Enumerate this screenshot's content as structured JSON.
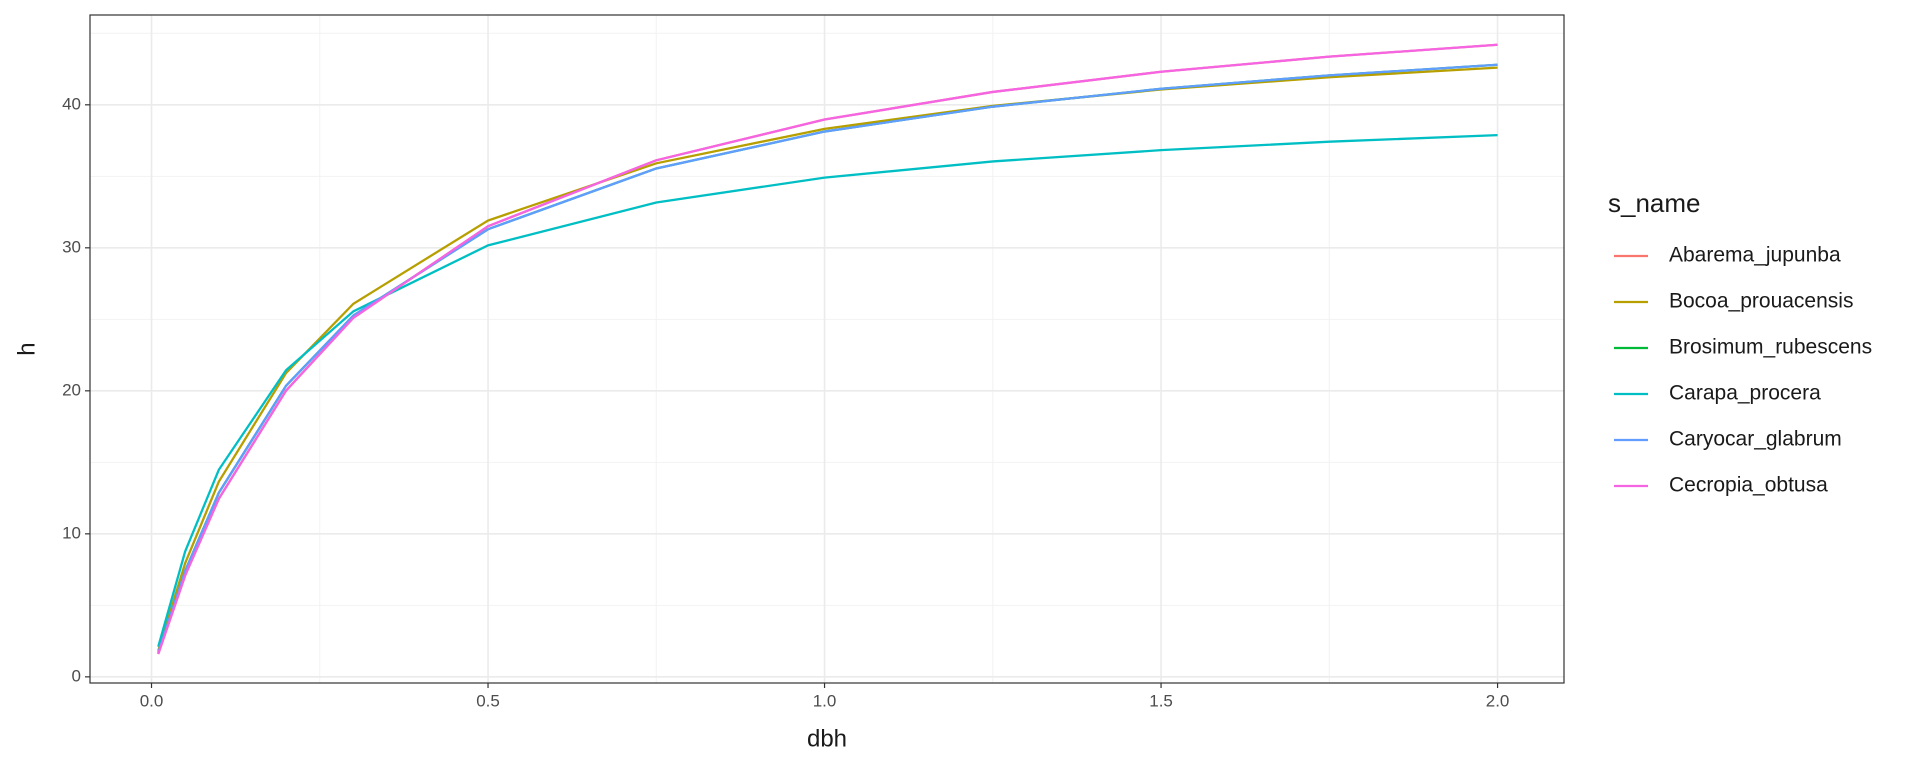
{
  "chart_data": {
    "type": "line",
    "x_label": "dbh",
    "y_label": "h",
    "legend_title": "s_name",
    "x": [
      0.01,
      0.05,
      0.1,
      0.2,
      0.3,
      0.5,
      0.75,
      1.0,
      1.25,
      1.5,
      1.75,
      2.0
    ],
    "series": [
      {
        "name": "Abarema_jupunba",
        "color": "#f8766d",
        "values": [
          1.6,
          7.09,
          12.45,
          20.02,
          25.11,
          31.51,
          36.12,
          38.97,
          40.9,
          42.31,
          43.37,
          44.2
        ]
      },
      {
        "name": "Bocoa_prouacensis",
        "color": "#b79f00",
        "values": [
          1.83,
          7.95,
          13.65,
          21.25,
          26.09,
          31.91,
          35.91,
          38.32,
          39.92,
          41.07,
          41.93,
          42.6
        ]
      },
      {
        "name": "Brosimum_rubescens",
        "color": "#00ba38",
        "values": [
          1.69,
          7.41,
          12.87,
          20.36,
          25.27,
          31.3,
          35.55,
          38.13,
          39.87,
          41.12,
          42.06,
          42.8
        ]
      },
      {
        "name": "Carapa_procera",
        "color": "#00bfc4",
        "values": [
          2.11,
          8.77,
          14.48,
          21.45,
          25.56,
          30.17,
          33.17,
          34.91,
          36.04,
          36.83,
          37.42,
          37.88
        ]
      },
      {
        "name": "Caryocar_glabrum",
        "color": "#619cff",
        "values": [
          1.69,
          7.41,
          12.87,
          20.36,
          25.27,
          31.3,
          35.55,
          38.13,
          39.87,
          41.12,
          42.06,
          42.8
        ]
      },
      {
        "name": "Cecropia_obtusa",
        "color": "#f564e3",
        "values": [
          1.6,
          7.09,
          12.45,
          20.02,
          25.11,
          31.51,
          36.12,
          38.97,
          40.9,
          42.31,
          43.37,
          44.2
        ]
      }
    ],
    "xlim": [
      -0.0914,
      2.0987
    ],
    "ylim": [
      -0.43,
      46.28
    ],
    "xticks": [
      {
        "value": 0,
        "label": "0.0"
      },
      0.5,
      {
        "value": 1,
        "label": "1.0"
      },
      1.5,
      {
        "value": 2,
        "label": "2.0"
      }
    ],
    "yticks": [
      0,
      10,
      20,
      30,
      40
    ],
    "grid": true,
    "legend": "right"
  }
}
